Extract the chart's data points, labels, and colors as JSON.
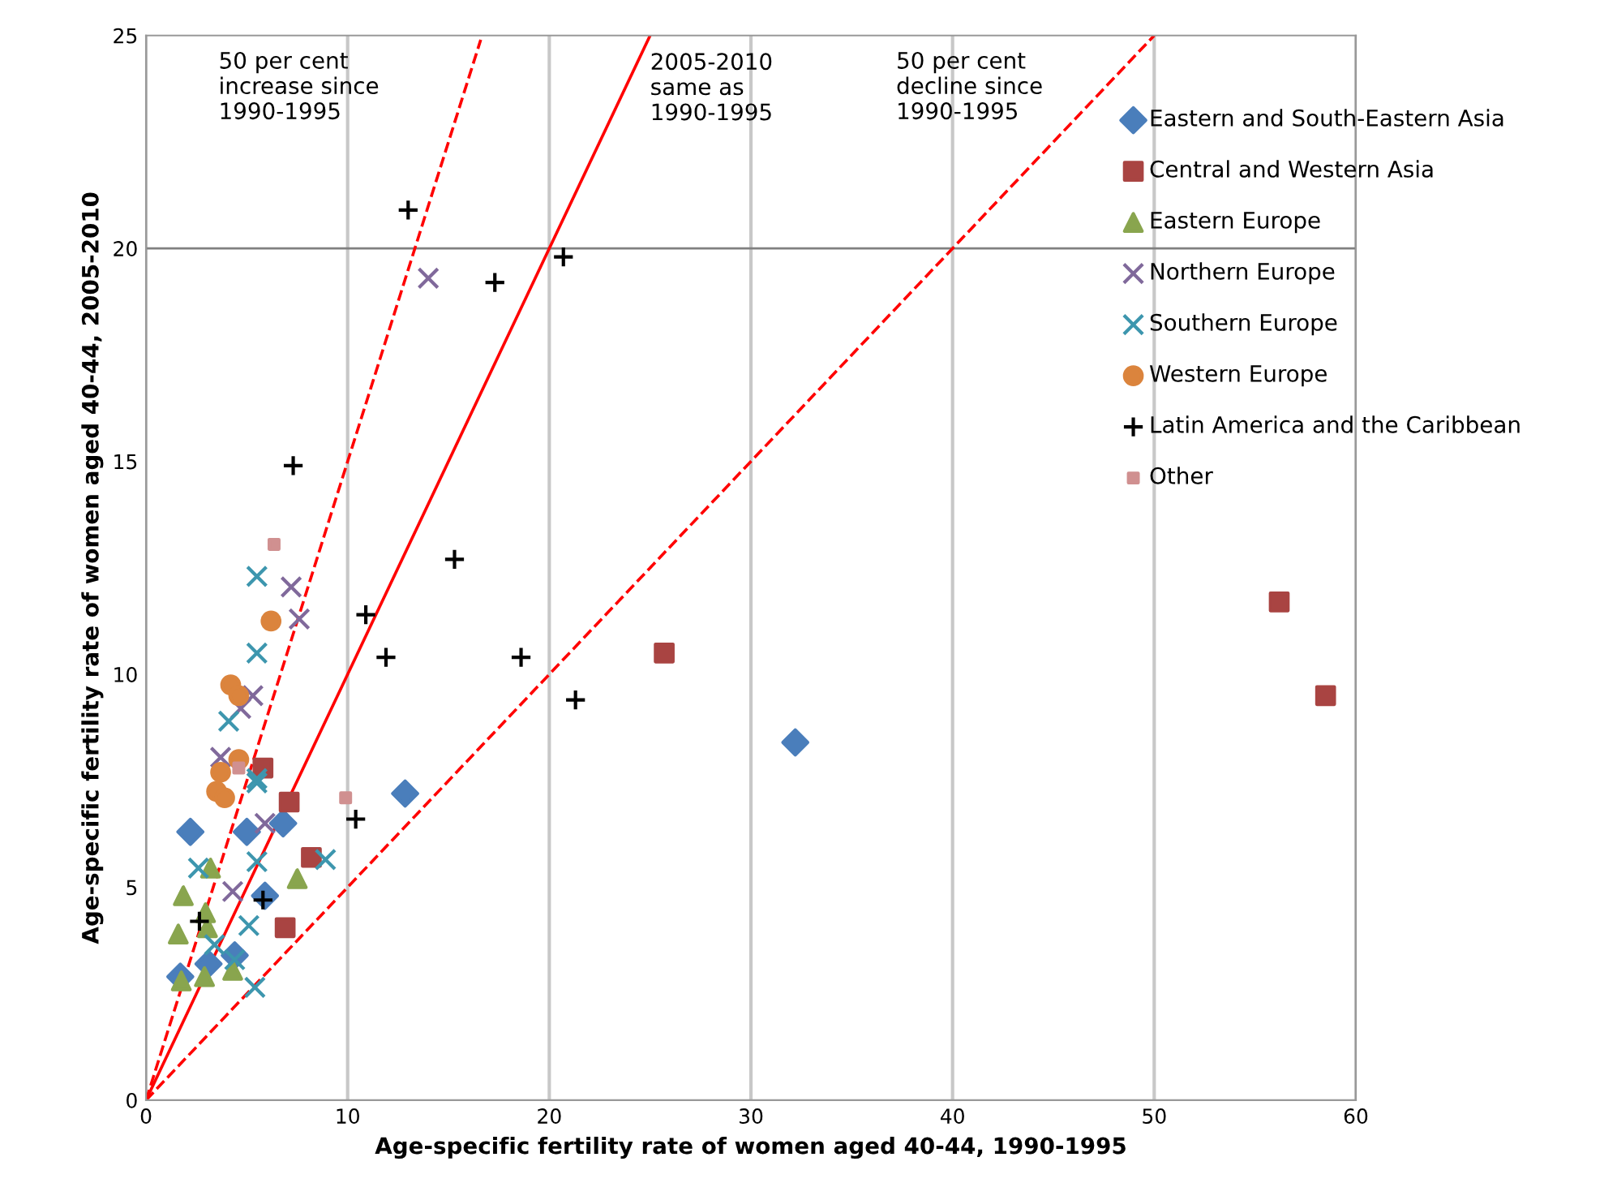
{
  "chart_data": {
    "type": "scatter",
    "xlabel": "Age-specific fertility rate of women aged 40-44, 1990-1995",
    "ylabel": "Age-specific fertility rate of women aged 40-44, 2005-2010",
    "xlim": [
      0,
      60
    ],
    "ylim": [
      0,
      25
    ],
    "xticks": [
      0,
      10,
      20,
      30,
      40,
      50,
      60
    ],
    "yticks": [
      0,
      5,
      10,
      15,
      20,
      25
    ],
    "grid": "x",
    "legend": "top right",
    "ref_lines": [
      {
        "axis": "y",
        "value": 20,
        "color": "#808080"
      }
    ],
    "series": [
      {
        "name": "Eastern and South-Eastern Asia",
        "color": "#4a7ebb",
        "marker": "diamond",
        "x": [
          2.2,
          5.0,
          6.8,
          5.9,
          4.4,
          3.1,
          1.7,
          12.85,
          32.2
        ],
        "values": [
          6.3,
          6.3,
          6.5,
          4.8,
          3.4,
          3.2,
          2.9,
          7.2,
          8.4
        ]
      },
      {
        "name": "Central and Western Asia",
        "color": "#a94442",
        "marker": "square",
        "x": [
          5.8,
          7.1,
          8.2,
          6.9,
          25.7,
          56.2,
          58.5
        ],
        "values": [
          7.8,
          7.0,
          5.7,
          4.05,
          10.5,
          11.7,
          9.5
        ]
      },
      {
        "name": "Eastern Europe",
        "color": "#89a54e",
        "marker": "triangle",
        "x": [
          3.2,
          1.85,
          7.5,
          2.95,
          1.6,
          3.05,
          1.75,
          2.9,
          4.3
        ],
        "values": [
          5.45,
          4.8,
          5.2,
          4.4,
          3.9,
          4.05,
          2.8,
          2.9,
          3.05
        ]
      },
      {
        "name": "Northern Europe",
        "color": "#80699b",
        "marker": "x",
        "x": [
          7.2,
          7.6,
          5.3,
          4.7,
          3.7,
          5.9,
          4.3,
          14.0
        ],
        "values": [
          12.05,
          11.3,
          9.5,
          9.2,
          8.05,
          6.5,
          4.9,
          19.3
        ]
      },
      {
        "name": "Southern Europe",
        "color": "#3d96ae",
        "marker": "cross",
        "x": [
          5.5,
          5.5,
          4.1,
          5.5,
          5.5,
          2.6,
          8.9,
          5.1,
          3.4,
          4.4,
          5.4,
          5.5
        ],
        "values": [
          12.3,
          10.5,
          8.9,
          7.55,
          5.6,
          5.45,
          5.65,
          4.1,
          3.65,
          3.3,
          2.65,
          7.45
        ]
      },
      {
        "name": "Western Europe",
        "color": "#db843d",
        "marker": "circle",
        "x": [
          6.2,
          4.2,
          4.6,
          4.6,
          3.7,
          3.5,
          3.9
        ],
        "values": [
          11.25,
          9.75,
          9.5,
          8.0,
          7.7,
          7.25,
          7.1
        ]
      },
      {
        "name": "Latin America and the Caribbean",
        "color": "#000000",
        "marker": "plus",
        "x": [
          13.0,
          17.3,
          20.7,
          7.3,
          15.3,
          10.9,
          11.9,
          18.6,
          21.3,
          10.4,
          5.8,
          2.65
        ],
        "values": [
          20.9,
          19.2,
          19.8,
          14.9,
          12.7,
          11.4,
          10.4,
          10.4,
          9.4,
          6.6,
          4.7,
          4.2
        ]
      },
      {
        "name": "Other",
        "color": "#d09090",
        "marker": "square",
        "x": [
          6.35,
          4.6,
          9.9
        ],
        "values": [
          13.05,
          7.8,
          7.1
        ]
      },
      {
        "type": "line",
        "color": "#ff0000",
        "line_style": "dashed",
        "x": [
          0,
          16.6
        ],
        "values": [
          0,
          24.9
        ]
      },
      {
        "type": "line",
        "color": "#ff0000",
        "line_style": "solid",
        "x": [
          0,
          25
        ],
        "values": [
          0,
          25
        ]
      },
      {
        "type": "line",
        "color": "#ff0000",
        "line_style": "dashed",
        "x": [
          0,
          50
        ],
        "values": [
          0,
          25
        ]
      }
    ],
    "annotations": [
      "50 per cent\nincrease since\n1990-1995",
      {
        "text": "2005-2010\nsame as\n1990-1995",
        "x": 25,
        "y": 24.6
      },
      "50 per cent\ndecline since\n1990-1995"
    ]
  }
}
